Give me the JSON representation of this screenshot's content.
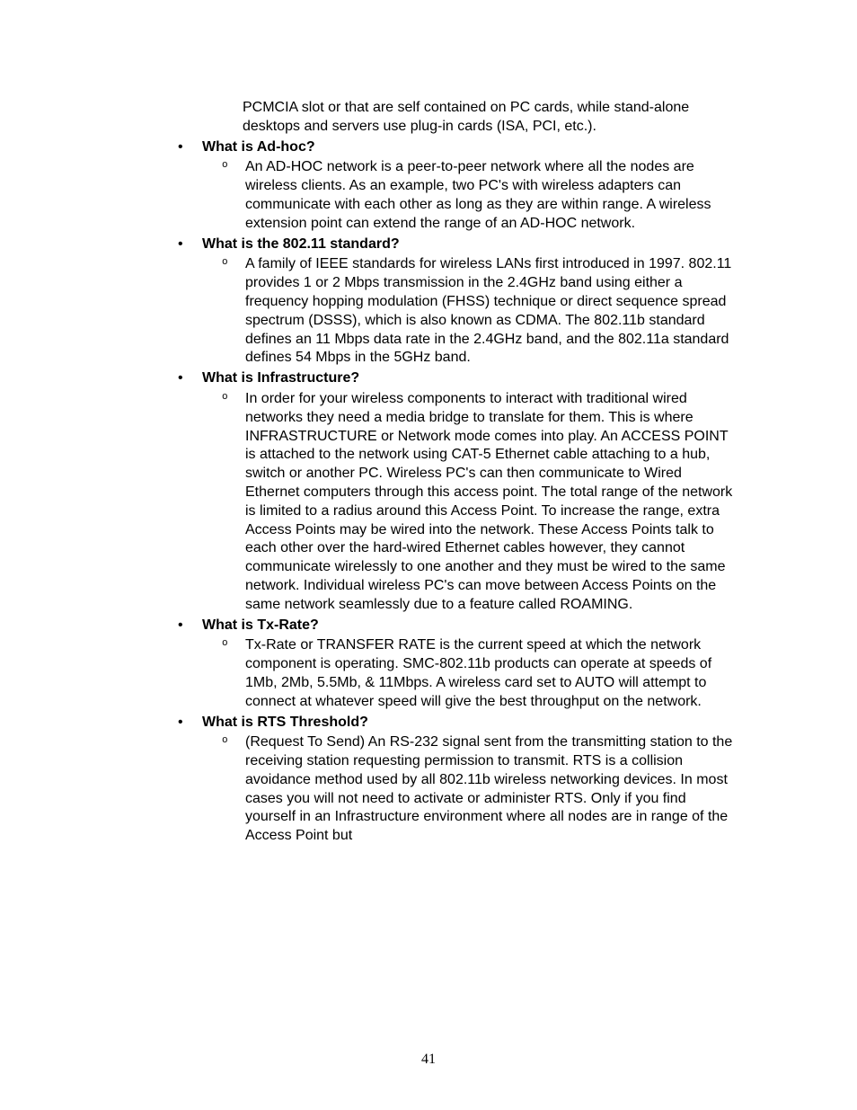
{
  "intro_continuation": "PCMCIA slot or that are self contained on PC cards, while stand-alone desktops and servers use plug-in cards (ISA, PCI, etc.).",
  "sections": [
    {
      "heading": "What is Ad-hoc?",
      "body": "An AD-HOC network is a peer-to-peer network where all the nodes are wireless clients. As an example, two PC's with wireless adapters can communicate with each other as long as they are within range. A wireless extension point can extend the range of an AD-HOC network."
    },
    {
      "heading": "What is the 802.11 standard?",
      "body": "A family of IEEE standards for wireless LANs first introduced in 1997. 802.11 provides 1 or 2 Mbps transmission in the 2.4GHz band using either a frequency hopping modulation (FHSS) technique or direct sequence spread spectrum (DSSS), which is also known as CDMA. The 802.11b standard defines an 11 Mbps data rate in the 2.4GHz band, and the 802.11a standard defines 54 Mbps in the 5GHz band."
    },
    {
      "heading": "What is Infrastructure?",
      "body": "In order for your wireless components to interact with traditional wired networks they need a media bridge to translate for them. This is where INFRASTRUCTURE or Network mode comes into play. An ACCESS POINT is attached to the network using CAT-5 Ethernet cable attaching to a hub, switch or another PC. Wireless PC's can then communicate to Wired Ethernet computers through this access point. The total range of the network is limited to a radius around this Access Point. To increase the range, extra Access Points may be wired into the network. These Access Points talk to each other over the hard-wired Ethernet cables however, they cannot communicate wirelessly to one another and they must be wired to the same network. Individual wireless PC's can move between Access Points on the same network seamlessly due to a feature called ROAMING."
    },
    {
      "heading": "What is Tx-Rate?",
      "body": "Tx-Rate or TRANSFER RATE is the current speed at which the network component is operating. SMC-802.11b products can operate at speeds of 1Mb, 2Mb, 5.5Mb, & 11Mbps. A wireless card set to AUTO will attempt to connect at whatever speed will give the best throughput on the network."
    },
    {
      "heading": "What is RTS Threshold?",
      "body": "(Request To Send) An RS-232 signal sent from the transmitting station to the receiving station requesting permission to transmit. RTS is a collision avoidance method used by all 802.11b wireless networking devices. In most cases you will not need to activate or administer RTS. Only if you find yourself in an Infrastructure environment where all nodes are in range of the Access Point but"
    }
  ],
  "page_number": "41"
}
